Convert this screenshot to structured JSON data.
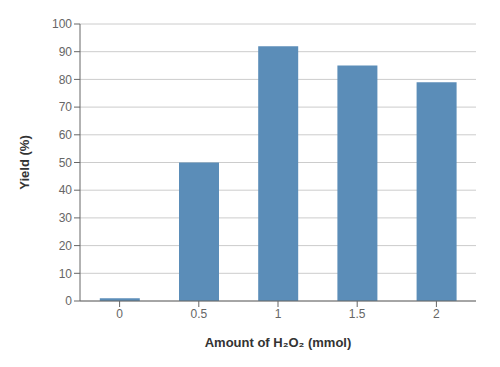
{
  "chart_data": {
    "type": "bar",
    "categories": [
      "0",
      "0.5",
      "1",
      "1.5",
      "2"
    ],
    "values": [
      1,
      50,
      92,
      85,
      79
    ],
    "color": "#5b8db8",
    "xlabel": "Amount of H₂O₂ (mmol)",
    "ylabel": "Yield (%)",
    "ylim": [
      0,
      100
    ],
    "yticks": [
      0,
      10,
      20,
      30,
      40,
      50,
      60,
      70,
      80,
      90,
      100
    ],
    "grid": true
  }
}
